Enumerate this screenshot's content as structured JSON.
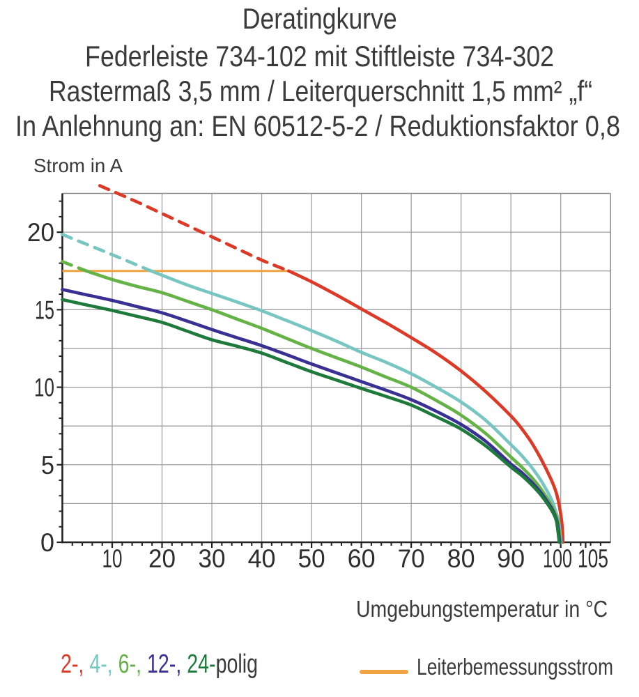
{
  "title_lines": [
    "Deratingkurve",
    "Federleiste 734-102 mit Stiftleiste 734-302",
    "Rastermaß 3,5 mm / Leiterquerschnitt 1,5 mm² „f“",
    "In Anlehnung an: EN 60512-5-2 / Reduktionsfaktor 0,8"
  ],
  "y_axis_title": "Strom in A",
  "x_axis_title": "Umgebungstemperatur in °C",
  "legend": {
    "poles_parts": [
      {
        "text": "2-,",
        "color": "#dc3a27"
      },
      {
        "text": "4-,",
        "color": "#77c6c1"
      },
      {
        "text": "6-,",
        "color": "#65b347"
      },
      {
        "text": "12-,",
        "color": "#393093"
      },
      {
        "text": "24-",
        "color": "#1e7a3a"
      }
    ],
    "poles_suffix": "polig",
    "rated_label": "Leiterbemessungsstrom",
    "rated_color": "#f0a441"
  },
  "chart_data": {
    "type": "line",
    "title": "Deratingkurve",
    "xlabel": "Umgebungstemperatur in °C",
    "ylabel": "Strom in A",
    "xlim": [
      0,
      110
    ],
    "ylim": [
      0,
      22.5
    ],
    "x_tick_labels": [
      10,
      20,
      30,
      40,
      50,
      60,
      70,
      80,
      90,
      100,
      105
    ],
    "y_tick_labels": [
      0,
      5,
      10,
      15,
      20
    ],
    "x_grid_step": 10,
    "y_grid_step": 2.5,
    "x_minor_tick_step": 2,
    "y_minor_tick_step": 1,
    "grid": true,
    "axis_color": "#222222",
    "grid_color": "#9f9f9f",
    "frame_color": "#8c8c8c",
    "rated_line": {
      "label": "Leiterbemessungsstrom",
      "value": 17.5,
      "x_start": 0,
      "x_end": 45.4,
      "color": "#f0a441"
    },
    "series": [
      {
        "name": "2-polig",
        "color": "#dc3a27",
        "dash_until": 45.4,
        "points": [
          [
            7.5,
            23.0
          ],
          [
            15,
            21.95
          ],
          [
            20,
            21.2
          ],
          [
            25,
            20.45
          ],
          [
            30,
            19.7
          ],
          [
            35,
            18.95
          ],
          [
            40,
            18.2
          ],
          [
            45.4,
            17.5
          ],
          [
            50,
            16.8
          ],
          [
            55,
            15.95
          ],
          [
            60,
            15.05
          ],
          [
            65,
            14.15
          ],
          [
            70,
            13.2
          ],
          [
            75,
            12.2
          ],
          [
            80,
            11.05
          ],
          [
            85,
            9.7
          ],
          [
            90,
            8.15
          ],
          [
            92,
            7.4
          ],
          [
            94,
            6.5
          ],
          [
            96,
            5.4
          ],
          [
            98,
            4.1
          ],
          [
            99,
            3.3
          ],
          [
            99.6,
            2.55
          ],
          [
            100,
            1.8
          ],
          [
            100.3,
            1.0
          ],
          [
            100.45,
            0
          ]
        ]
      },
      {
        "name": "4-polig",
        "color": "#77c6c1",
        "dash_until": 17.8,
        "points": [
          [
            0,
            19.85
          ],
          [
            5,
            19.2
          ],
          [
            10,
            18.55
          ],
          [
            15,
            17.88
          ],
          [
            17.8,
            17.5
          ],
          [
            25,
            16.6
          ],
          [
            30,
            16.05
          ],
          [
            35,
            15.5
          ],
          [
            40,
            14.93
          ],
          [
            45,
            14.3
          ],
          [
            50,
            13.65
          ],
          [
            55,
            12.97
          ],
          [
            60,
            12.25
          ],
          [
            65,
            11.6
          ],
          [
            70,
            10.87
          ],
          [
            75,
            10.0
          ],
          [
            80,
            9.05
          ],
          [
            85,
            7.85
          ],
          [
            90,
            6.3
          ],
          [
            92,
            5.65
          ],
          [
            94,
            4.9
          ],
          [
            96,
            4.0
          ],
          [
            98,
            2.85
          ],
          [
            99,
            2.0
          ],
          [
            99.6,
            1.3
          ],
          [
            100.05,
            0
          ]
        ]
      },
      {
        "name": "6-polig",
        "color": "#65b347",
        "dash_until": 4.8,
        "points": [
          [
            0,
            18.1
          ],
          [
            4.8,
            17.5
          ],
          [
            10,
            16.95
          ],
          [
            15,
            16.5
          ],
          [
            20,
            16.1
          ],
          [
            25,
            15.55
          ],
          [
            30,
            15.0
          ],
          [
            35,
            14.4
          ],
          [
            40,
            13.8
          ],
          [
            45,
            13.15
          ],
          [
            50,
            12.5
          ],
          [
            55,
            11.9
          ],
          [
            60,
            11.3
          ],
          [
            65,
            10.65
          ],
          [
            70,
            10.0
          ],
          [
            75,
            9.15
          ],
          [
            80,
            8.2
          ],
          [
            85,
            7.0
          ],
          [
            90,
            5.5
          ],
          [
            92,
            4.9
          ],
          [
            94,
            4.25
          ],
          [
            96,
            3.45
          ],
          [
            98,
            2.45
          ],
          [
            99,
            1.75
          ],
          [
            99.5,
            1.2
          ],
          [
            99.9,
            0
          ]
        ]
      },
      {
        "name": "12-polig",
        "color": "#393093",
        "dash_until": null,
        "points": [
          [
            0,
            16.3
          ],
          [
            5,
            15.95
          ],
          [
            10,
            15.6
          ],
          [
            15,
            15.2
          ],
          [
            20,
            14.8
          ],
          [
            25,
            14.27
          ],
          [
            30,
            13.72
          ],
          [
            35,
            13.2
          ],
          [
            40,
            12.68
          ],
          [
            45,
            12.1
          ],
          [
            50,
            11.5
          ],
          [
            55,
            10.93
          ],
          [
            60,
            10.36
          ],
          [
            65,
            9.8
          ],
          [
            70,
            9.2
          ],
          [
            75,
            8.45
          ],
          [
            80,
            7.6
          ],
          [
            85,
            6.5
          ],
          [
            90,
            5.05
          ],
          [
            92,
            4.55
          ],
          [
            94,
            3.93
          ],
          [
            96,
            3.2
          ],
          [
            98,
            2.27
          ],
          [
            99,
            1.6
          ],
          [
            99.4,
            1.1
          ],
          [
            99.8,
            0
          ]
        ]
      },
      {
        "name": "24-polig",
        "color": "#1e7a3a",
        "dash_until": null,
        "points": [
          [
            0,
            15.65
          ],
          [
            5,
            15.3
          ],
          [
            10,
            14.95
          ],
          [
            15,
            14.57
          ],
          [
            20,
            14.18
          ],
          [
            25,
            13.62
          ],
          [
            30,
            13.06
          ],
          [
            35,
            12.65
          ],
          [
            40,
            12.2
          ],
          [
            45,
            11.6
          ],
          [
            50,
            11.0
          ],
          [
            55,
            10.46
          ],
          [
            60,
            9.92
          ],
          [
            65,
            9.4
          ],
          [
            70,
            8.85
          ],
          [
            75,
            8.1
          ],
          [
            80,
            7.3
          ],
          [
            85,
            6.2
          ],
          [
            90,
            4.85
          ],
          [
            92,
            4.35
          ],
          [
            94,
            3.76
          ],
          [
            96,
            3.06
          ],
          [
            98,
            2.16
          ],
          [
            99,
            1.52
          ],
          [
            99.3,
            1.05
          ],
          [
            99.7,
            0
          ]
        ]
      }
    ]
  }
}
